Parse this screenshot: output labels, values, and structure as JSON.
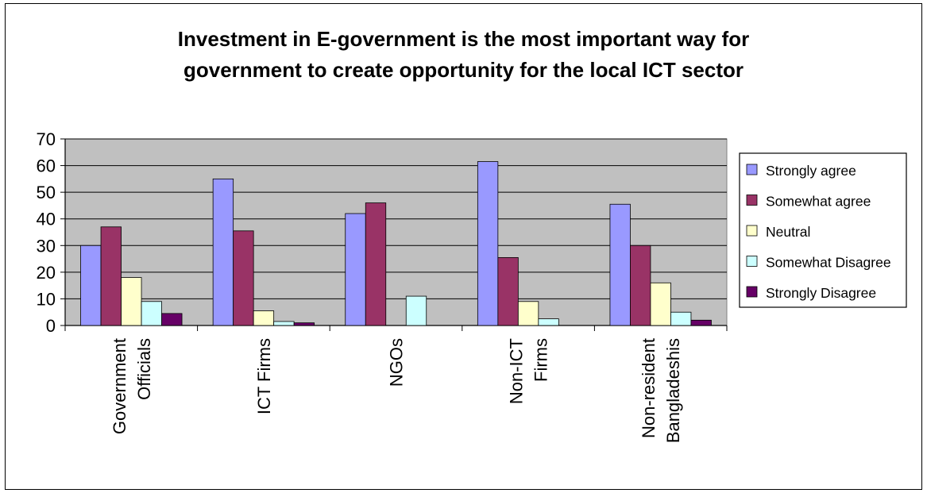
{
  "chart_data": {
    "type": "bar",
    "title_lines": [
      "Investment in E-government is the most important way for",
      "government to create opportunity for the local ICT sector"
    ],
    "categories": [
      [
        "Government",
        "Officials"
      ],
      [
        "ICT Firms"
      ],
      [
        "NGOs"
      ],
      [
        "Non-ICT",
        "Firms"
      ],
      [
        "Non-resident",
        "Bangladeshis"
      ]
    ],
    "series": [
      {
        "name": "Strongly agree",
        "color": "#9999ff",
        "values": [
          30,
          55,
          42,
          61.5,
          45.5
        ]
      },
      {
        "name": "Somewhat agree",
        "color": "#993366",
        "values": [
          37,
          35.5,
          46,
          25.5,
          30
        ]
      },
      {
        "name": "Neutral",
        "color": "#ffffcc",
        "values": [
          18,
          5.5,
          0,
          9,
          16
        ]
      },
      {
        "name": "Somewhat Disagree",
        "color": "#ccffff",
        "values": [
          9,
          1.5,
          11,
          2.5,
          5
        ]
      },
      {
        "name": "Strongly Disagree",
        "color": "#660066",
        "values": [
          4.5,
          1,
          0,
          0,
          2
        ]
      }
    ],
    "ylim": [
      0,
      70
    ],
    "yticks": [
      0,
      10,
      20,
      30,
      40,
      50,
      60,
      70
    ],
    "grid": true,
    "plot_background": "#c0c0c0",
    "legend_position": "right"
  }
}
